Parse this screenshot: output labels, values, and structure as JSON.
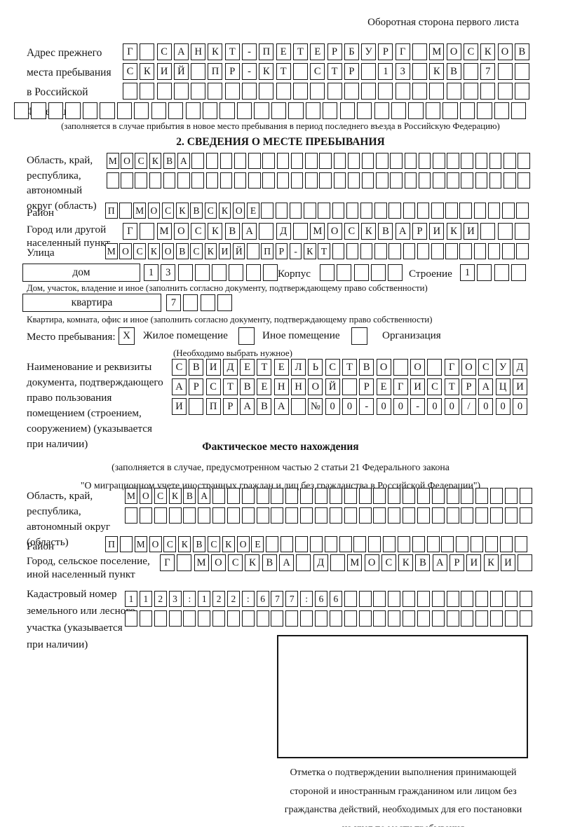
{
  "note_top_right": "Оборотная сторона первого листа",
  "prev_address": {
    "label_lines": [
      "Адрес прежнего",
      "места пребывания",
      "в Российской",
      "Федерации"
    ],
    "rows": [
      {
        "cells": "Г САНКТ-ПЕТЕРБУРГ МОСКОВ",
        "count": 24
      },
      {
        "cells": "СКИЙ ПР-КТ СТР 13 КВ 7",
        "count": 24
      },
      {
        "cells": "",
        "count": 24
      },
      {
        "cells": "",
        "count": 30
      }
    ],
    "caption": "(заполняется в случае прибытия в новое место пребывания в период последнего въезда в Российскую Федерацию)"
  },
  "section2": {
    "header": "2. СВЕДЕНИЯ О МЕСТЕ ПРЕБЫВАНИЯ",
    "oblast": {
      "label_lines": [
        "Область, край,",
        "республика,",
        "автономный",
        "округ (область)"
      ],
      "rows": [
        {
          "cells": "МОСКВА",
          "count": 30
        },
        {
          "cells": "",
          "count": 30
        }
      ]
    },
    "rayon": {
      "label": "Район",
      "row": {
        "cells": "П МОСКВСКОЕ",
        "count": 30
      }
    },
    "gorod": {
      "label_lines": [
        "Город или другой",
        "населенный пункт"
      ],
      "row": {
        "cells": "Г МОСКВА Д МОСКВАРИКИ",
        "count": 24
      }
    },
    "ulitsa": {
      "label": "Улица",
      "row": {
        "cells": "МОСКОВСКИЙ ПР-КТ",
        "count": 30
      }
    },
    "dom": {
      "box_label": "дом",
      "row": {
        "cells": "13",
        "count": 8
      },
      "korpus_label": "Корпус",
      "korpus_row": {
        "cells": "",
        "count": 5
      },
      "stroenie_label": "Строение",
      "stroenie_row": {
        "cells": "1",
        "count": 4
      },
      "caption": "Дом, участок, владение и иное (заполнить согласно документу, подтверждающему право собственности)"
    },
    "kvartira": {
      "box_label": "квартира",
      "row": {
        "cells": "7",
        "count": 4
      },
      "caption": "Квартира, комната, офис и иное (заполнить согласно документу, подтверждающему право собственности)"
    },
    "mesto": {
      "label": "Место пребывания:",
      "options": [
        {
          "mark": "X",
          "label": "Жилое помещение"
        },
        {
          "mark": "",
          "label": "Иное помещение"
        },
        {
          "mark": "",
          "label": "Организация"
        }
      ],
      "caption": "(Необходимо выбрать нужное)"
    },
    "doc": {
      "label_lines": [
        "Наименование и реквизиты",
        "документа, подтверждающего",
        "право пользования",
        "помещением (строением,",
        "сооружением) (указывается",
        "при наличии)"
      ],
      "rows": [
        {
          "cells": "СВИДЕТЕЛЬСТВО О ГОСУД",
          "count": 21
        },
        {
          "cells": "АРСТВЕННОЙ РЕГИСТРАЦИ",
          "count": 21
        },
        {
          "cells": "И ПРАВА №00-00-00/000",
          "count": 21
        }
      ]
    }
  },
  "fact": {
    "header": "Фактическое место нахождения",
    "caption_lines": [
      "(заполняется в случае, предусмотренном частью 2 статьи 21 Федерального закона",
      "\"О миграционном учете иностранных граждан и лиц без гражданства в Российской Федерации\")"
    ],
    "oblast": {
      "label_lines": [
        "Область, край,",
        "республика,",
        "автономный округ",
        "(область)"
      ],
      "rows": [
        {
          "cells": "МОСКВА",
          "count": 28
        },
        {
          "cells": "",
          "count": 28
        }
      ]
    },
    "rayon": {
      "label": "Район",
      "row": {
        "cells": "П МОСКВСКОЕ",
        "count": 29
      }
    },
    "gorod": {
      "label_lines": [
        "Город, сельское поселение,",
        "иной населенный пункт"
      ],
      "row": {
        "cells": "Г МОСКВА Д МОСКВАРИКИ",
        "count": 22
      }
    },
    "kadastr": {
      "label_lines": [
        "Кадастровый номер",
        "земельного или лесного",
        "участка (указывается",
        "при наличии)"
      ],
      "rows": [
        {
          "cells": "1123:122:677:66",
          "count": 28
        },
        {
          "cells": "",
          "count": 28
        }
      ]
    },
    "stamp_caption_lines": [
      "Отметка о подтверждении выполнения принимающей",
      "стороной и иностранным гражданином или лицом без",
      "гражданства действий, необходимых для его постановки",
      "на учет по месту пребывания"
    ]
  }
}
